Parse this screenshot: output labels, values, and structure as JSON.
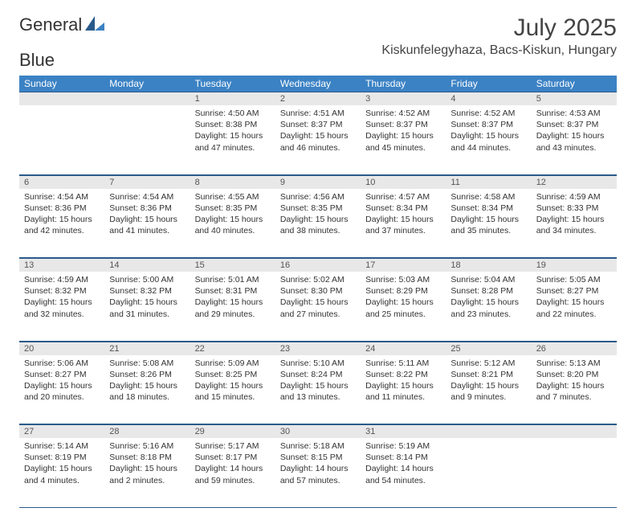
{
  "logo": {
    "part1": "General",
    "part2": "Blue"
  },
  "header": {
    "month_title": "July 2025",
    "location": "Kiskunfelegyhaza, Bacs-Kiskun, Hungary"
  },
  "day_headers": [
    "Sunday",
    "Monday",
    "Tuesday",
    "Wednesday",
    "Thursday",
    "Friday",
    "Saturday"
  ],
  "colors": {
    "header_bg": "#3b82c4",
    "header_fg": "#ffffff",
    "daynum_bg": "#e8e8e8",
    "rule": "#2a5a8a",
    "text": "#333333",
    "logo_gray": "#555555",
    "logo_blue": "#3b82c4",
    "page_bg": "#ffffff"
  },
  "weeks": [
    [
      null,
      null,
      {
        "n": "1",
        "sr": "Sunrise: 4:50 AM",
        "ss": "Sunset: 8:38 PM",
        "dl": "Daylight: 15 hours and 47 minutes."
      },
      {
        "n": "2",
        "sr": "Sunrise: 4:51 AM",
        "ss": "Sunset: 8:37 PM",
        "dl": "Daylight: 15 hours and 46 minutes."
      },
      {
        "n": "3",
        "sr": "Sunrise: 4:52 AM",
        "ss": "Sunset: 8:37 PM",
        "dl": "Daylight: 15 hours and 45 minutes."
      },
      {
        "n": "4",
        "sr": "Sunrise: 4:52 AM",
        "ss": "Sunset: 8:37 PM",
        "dl": "Daylight: 15 hours and 44 minutes."
      },
      {
        "n": "5",
        "sr": "Sunrise: 4:53 AM",
        "ss": "Sunset: 8:37 PM",
        "dl": "Daylight: 15 hours and 43 minutes."
      }
    ],
    [
      {
        "n": "6",
        "sr": "Sunrise: 4:54 AM",
        "ss": "Sunset: 8:36 PM",
        "dl": "Daylight: 15 hours and 42 minutes."
      },
      {
        "n": "7",
        "sr": "Sunrise: 4:54 AM",
        "ss": "Sunset: 8:36 PM",
        "dl": "Daylight: 15 hours and 41 minutes."
      },
      {
        "n": "8",
        "sr": "Sunrise: 4:55 AM",
        "ss": "Sunset: 8:35 PM",
        "dl": "Daylight: 15 hours and 40 minutes."
      },
      {
        "n": "9",
        "sr": "Sunrise: 4:56 AM",
        "ss": "Sunset: 8:35 PM",
        "dl": "Daylight: 15 hours and 38 minutes."
      },
      {
        "n": "10",
        "sr": "Sunrise: 4:57 AM",
        "ss": "Sunset: 8:34 PM",
        "dl": "Daylight: 15 hours and 37 minutes."
      },
      {
        "n": "11",
        "sr": "Sunrise: 4:58 AM",
        "ss": "Sunset: 8:34 PM",
        "dl": "Daylight: 15 hours and 35 minutes."
      },
      {
        "n": "12",
        "sr": "Sunrise: 4:59 AM",
        "ss": "Sunset: 8:33 PM",
        "dl": "Daylight: 15 hours and 34 minutes."
      }
    ],
    [
      {
        "n": "13",
        "sr": "Sunrise: 4:59 AM",
        "ss": "Sunset: 8:32 PM",
        "dl": "Daylight: 15 hours and 32 minutes."
      },
      {
        "n": "14",
        "sr": "Sunrise: 5:00 AM",
        "ss": "Sunset: 8:32 PM",
        "dl": "Daylight: 15 hours and 31 minutes."
      },
      {
        "n": "15",
        "sr": "Sunrise: 5:01 AM",
        "ss": "Sunset: 8:31 PM",
        "dl": "Daylight: 15 hours and 29 minutes."
      },
      {
        "n": "16",
        "sr": "Sunrise: 5:02 AM",
        "ss": "Sunset: 8:30 PM",
        "dl": "Daylight: 15 hours and 27 minutes."
      },
      {
        "n": "17",
        "sr": "Sunrise: 5:03 AM",
        "ss": "Sunset: 8:29 PM",
        "dl": "Daylight: 15 hours and 25 minutes."
      },
      {
        "n": "18",
        "sr": "Sunrise: 5:04 AM",
        "ss": "Sunset: 8:28 PM",
        "dl": "Daylight: 15 hours and 23 minutes."
      },
      {
        "n": "19",
        "sr": "Sunrise: 5:05 AM",
        "ss": "Sunset: 8:27 PM",
        "dl": "Daylight: 15 hours and 22 minutes."
      }
    ],
    [
      {
        "n": "20",
        "sr": "Sunrise: 5:06 AM",
        "ss": "Sunset: 8:27 PM",
        "dl": "Daylight: 15 hours and 20 minutes."
      },
      {
        "n": "21",
        "sr": "Sunrise: 5:08 AM",
        "ss": "Sunset: 8:26 PM",
        "dl": "Daylight: 15 hours and 18 minutes."
      },
      {
        "n": "22",
        "sr": "Sunrise: 5:09 AM",
        "ss": "Sunset: 8:25 PM",
        "dl": "Daylight: 15 hours and 15 minutes."
      },
      {
        "n": "23",
        "sr": "Sunrise: 5:10 AM",
        "ss": "Sunset: 8:24 PM",
        "dl": "Daylight: 15 hours and 13 minutes."
      },
      {
        "n": "24",
        "sr": "Sunrise: 5:11 AM",
        "ss": "Sunset: 8:22 PM",
        "dl": "Daylight: 15 hours and 11 minutes."
      },
      {
        "n": "25",
        "sr": "Sunrise: 5:12 AM",
        "ss": "Sunset: 8:21 PM",
        "dl": "Daylight: 15 hours and 9 minutes."
      },
      {
        "n": "26",
        "sr": "Sunrise: 5:13 AM",
        "ss": "Sunset: 8:20 PM",
        "dl": "Daylight: 15 hours and 7 minutes."
      }
    ],
    [
      {
        "n": "27",
        "sr": "Sunrise: 5:14 AM",
        "ss": "Sunset: 8:19 PM",
        "dl": "Daylight: 15 hours and 4 minutes."
      },
      {
        "n": "28",
        "sr": "Sunrise: 5:16 AM",
        "ss": "Sunset: 8:18 PM",
        "dl": "Daylight: 15 hours and 2 minutes."
      },
      {
        "n": "29",
        "sr": "Sunrise: 5:17 AM",
        "ss": "Sunset: 8:17 PM",
        "dl": "Daylight: 14 hours and 59 minutes."
      },
      {
        "n": "30",
        "sr": "Sunrise: 5:18 AM",
        "ss": "Sunset: 8:15 PM",
        "dl": "Daylight: 14 hours and 57 minutes."
      },
      {
        "n": "31",
        "sr": "Sunrise: 5:19 AM",
        "ss": "Sunset: 8:14 PM",
        "dl": "Daylight: 14 hours and 54 minutes."
      },
      null,
      null
    ]
  ]
}
